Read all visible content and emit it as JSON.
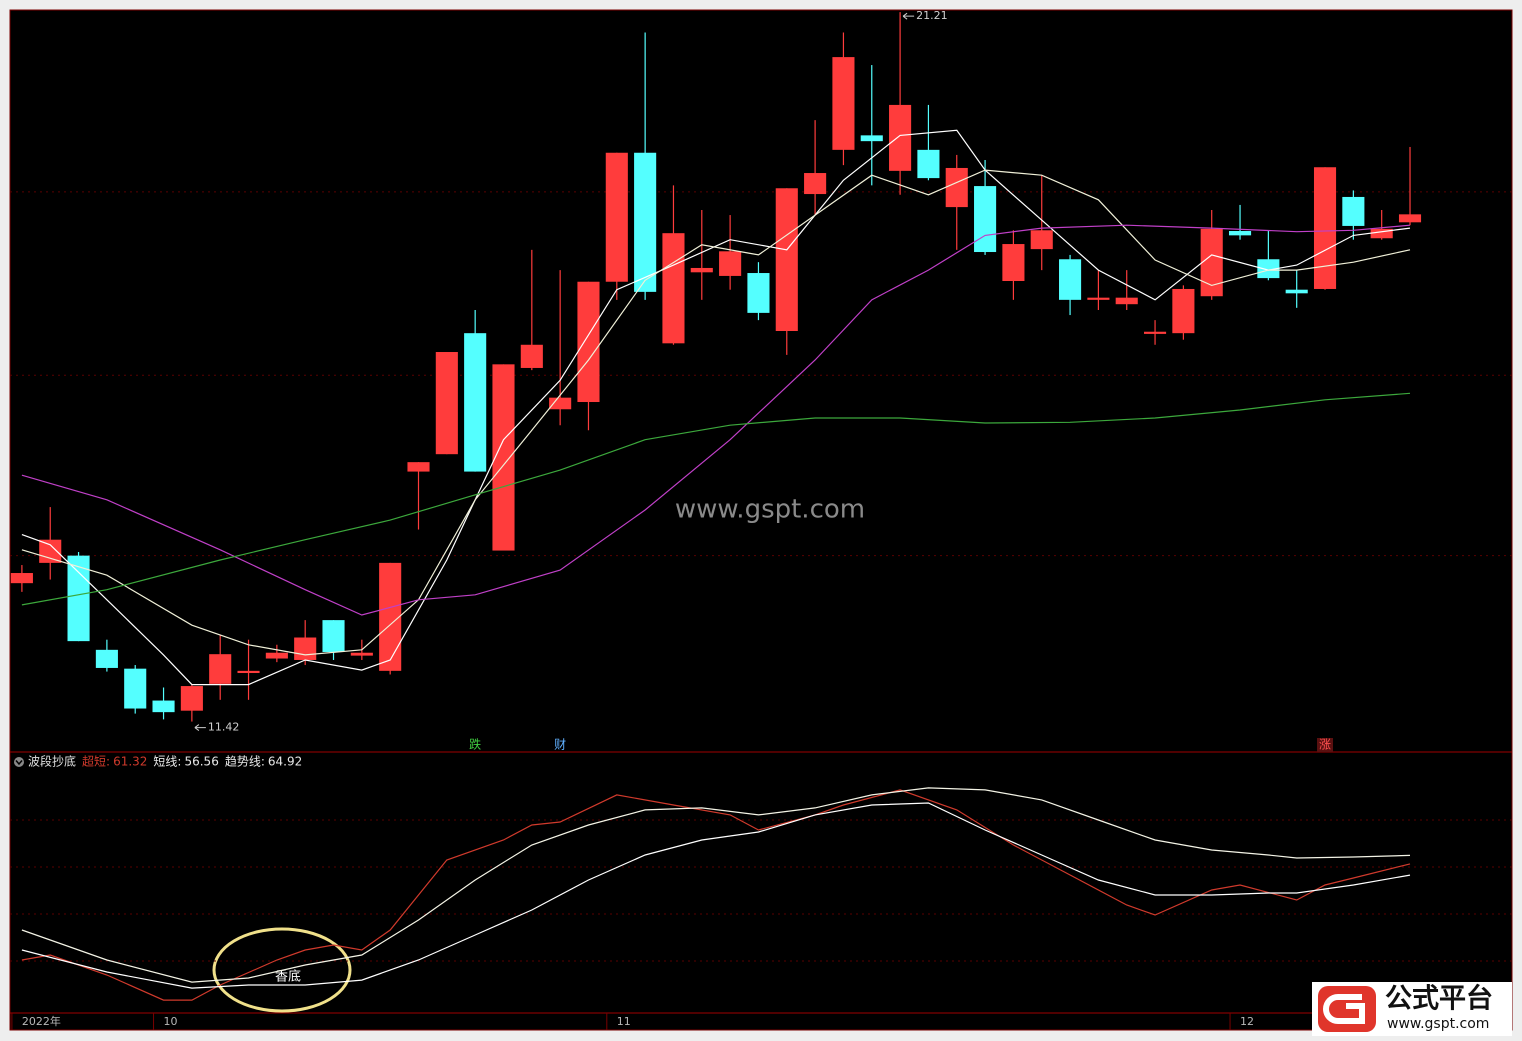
{
  "watermark": "www.gspt.com",
  "logo": {
    "title": "公式平台",
    "url": "www.gspt.com"
  },
  "chart_data": [
    {
      "type": "candlestick",
      "up_color": "#ff3c3c",
      "down_color": "#54ffff",
      "xlim": [
        -0.42,
        52.6
      ],
      "ylim": [
        11.0,
        21.24
      ],
      "gridlines": [
        18.73,
        16.2,
        13.71
      ],
      "ohlc": [
        [
          13.33,
          13.58,
          13.21,
          13.47
        ],
        [
          13.61,
          14.38,
          13.38,
          13.93
        ],
        [
          13.71,
          13.76,
          12.53,
          12.53
        ],
        [
          12.41,
          12.55,
          12.11,
          12.16
        ],
        [
          12.15,
          12.2,
          11.53,
          11.6
        ],
        [
          11.71,
          11.89,
          11.45,
          11.55
        ],
        [
          11.57,
          11.93,
          11.42,
          11.91
        ],
        [
          11.94,
          12.62,
          11.72,
          12.35
        ],
        [
          12.09,
          12.55,
          11.72,
          12.12
        ],
        [
          12.29,
          12.48,
          12.24,
          12.37
        ],
        [
          12.27,
          12.82,
          12.2,
          12.58
        ],
        [
          12.82,
          12.82,
          12.27,
          12.38
        ],
        [
          12.33,
          12.55,
          12.27,
          12.37
        ],
        [
          12.12,
          13.61,
          12.07,
          13.61
        ],
        [
          14.87,
          15.0,
          14.07,
          15.0
        ],
        [
          15.11,
          16.52,
          15.11,
          16.52
        ],
        [
          16.78,
          17.1,
          14.87,
          14.87
        ],
        [
          13.78,
          16.35,
          13.78,
          16.35
        ],
        [
          16.3,
          17.93,
          16.27,
          16.62
        ],
        [
          15.73,
          17.65,
          15.51,
          15.89
        ],
        [
          15.83,
          17.49,
          15.44,
          17.49
        ],
        [
          17.49,
          19.27,
          17.24,
          19.27
        ],
        [
          19.27,
          20.93,
          17.24,
          17.35
        ],
        [
          16.64,
          18.82,
          16.62,
          18.16
        ],
        [
          17.62,
          18.48,
          17.24,
          17.68
        ],
        [
          17.57,
          18.41,
          17.38,
          17.91
        ],
        [
          17.61,
          17.76,
          16.96,
          17.06
        ],
        [
          16.81,
          18.78,
          16.48,
          18.78
        ],
        [
          18.7,
          19.72,
          18.41,
          18.99
        ],
        [
          19.31,
          20.93,
          19.1,
          20.59
        ],
        [
          19.51,
          20.48,
          18.82,
          19.43
        ],
        [
          19.02,
          21.21,
          18.69,
          19.93
        ],
        [
          19.31,
          19.93,
          18.89,
          18.92
        ],
        [
          18.52,
          19.24,
          17.93,
          19.06
        ],
        [
          18.81,
          19.17,
          17.86,
          17.9
        ],
        [
          17.5,
          18.2,
          17.24,
          18.01
        ],
        [
          17.94,
          18.96,
          17.65,
          18.2
        ],
        [
          17.8,
          17.86,
          17.03,
          17.24
        ],
        [
          17.24,
          17.65,
          17.1,
          17.27
        ],
        [
          17.18,
          17.65,
          17.1,
          17.27
        ],
        [
          16.77,
          16.96,
          16.62,
          16.8
        ],
        [
          16.78,
          17.44,
          16.69,
          17.39
        ],
        [
          17.29,
          18.48,
          17.24,
          18.22
        ],
        [
          18.19,
          18.55,
          18.07,
          18.13
        ],
        [
          17.8,
          18.2,
          17.51,
          17.54
        ],
        [
          17.38,
          17.65,
          17.13,
          17.33
        ],
        [
          17.39,
          19.07,
          17.38,
          19.07
        ],
        [
          18.66,
          18.75,
          18.07,
          18.26
        ],
        [
          18.09,
          18.48,
          18.07,
          18.22
        ],
        [
          18.31,
          19.35,
          18.27,
          18.42
        ]
      ],
      "series": [
        {
          "color": "#ffffff",
          "x": [
            0,
            1,
            3,
            5,
            6,
            8,
            10,
            12,
            13,
            15,
            17,
            19,
            21,
            23,
            25,
            27,
            29,
            31,
            33,
            34,
            36,
            38,
            40,
            42,
            44,
            45,
            47,
            49
          ],
          "values": [
            14.0,
            13.86,
            13.1,
            12.34,
            11.93,
            11.93,
            12.27,
            12.13,
            12.27,
            13.65,
            15.31,
            16.13,
            17.38,
            17.72,
            18.07,
            17.93,
            18.89,
            19.51,
            19.58,
            19.03,
            18.34,
            17.65,
            17.24,
            17.86,
            17.65,
            17.72,
            18.13,
            18.23
          ]
        },
        {
          "color": "#f0f0d8",
          "x": [
            0,
            3,
            6,
            8,
            10,
            12,
            14,
            16,
            18,
            20,
            22,
            24,
            26,
            28,
            30,
            32,
            34,
            36,
            38,
            40,
            42,
            44,
            45,
            47,
            49
          ],
          "values": [
            13.79,
            13.44,
            12.75,
            12.48,
            12.34,
            12.41,
            13.1,
            14.48,
            15.44,
            16.41,
            17.51,
            18.0,
            17.86,
            18.41,
            18.96,
            18.69,
            19.03,
            18.96,
            18.62,
            17.79,
            17.44,
            17.65,
            17.65,
            17.76,
            17.93
          ]
        },
        {
          "color": "#c040c8",
          "x": [
            0,
            3,
            7,
            10,
            12,
            14,
            16,
            19,
            22,
            25,
            28,
            30,
            32,
            34,
            36,
            39,
            42,
            45,
            47,
            49
          ],
          "values": [
            14.82,
            14.48,
            13.79,
            13.24,
            12.89,
            13.1,
            13.17,
            13.51,
            14.34,
            15.31,
            16.41,
            17.24,
            17.65,
            18.13,
            18.23,
            18.27,
            18.23,
            18.18,
            18.2,
            18.27
          ]
        },
        {
          "color": "#3ca83c",
          "x": [
            0,
            3,
            7,
            10,
            13,
            16,
            19,
            22,
            25,
            28,
            31,
            34,
            37,
            40,
            43,
            46,
            49
          ],
          "values": [
            13.03,
            13.24,
            13.65,
            13.93,
            14.2,
            14.55,
            14.89,
            15.31,
            15.51,
            15.61,
            15.61,
            15.54,
            15.55,
            15.61,
            15.72,
            15.86,
            15.95
          ]
        }
      ],
      "markers": [
        {
          "text": "跌",
          "x": 16,
          "color": "#40d040"
        },
        {
          "text": "财",
          "x": 19,
          "color": "#60b0ff"
        },
        {
          "text": "涨",
          "x": 46,
          "color": "#ff5050"
        }
      ]
    },
    {
      "type": "line",
      "title": "波段抄底",
      "xlim": [
        -0.42,
        52.6
      ],
      "ylim": [
        -2.1,
        108.9
      ],
      "gridlines": [
        20,
        40,
        60,
        80
      ],
      "xticks": [
        {
          "value": 0,
          "label": "2022年"
        },
        {
          "value": 5,
          "label": "10"
        },
        {
          "value": 21,
          "label": "11"
        },
        {
          "value": 43,
          "label": "12"
        }
      ],
      "annotation": "香底",
      "series": [
        {
          "name": "超短:",
          "color": "#d03a2c",
          "x": [
            0,
            1,
            3,
            5,
            6,
            7,
            9,
            10,
            11,
            12,
            13,
            15,
            17,
            18,
            19,
            21,
            23,
            25,
            26,
            28,
            29,
            31,
            33,
            35,
            37,
            39,
            40,
            42,
            43,
            45,
            46,
            47,
            49
          ],
          "values": [
            20.43,
            22.55,
            14.04,
            3.4,
            3.4,
            9.79,
            20.43,
            24.68,
            26.81,
            24.68,
            33.19,
            62.98,
            71.49,
            77.87,
            79.15,
            90.64,
            86.38,
            82.13,
            75.74,
            82.13,
            86.38,
            92.77,
            84.26,
            69.36,
            56.6,
            43.83,
            39.57,
            50.21,
            52.34,
            45.96,
            52.34,
            55.32,
            61.32
          ]
        },
        {
          "name": "短线:",
          "color": "#ffffff",
          "x": [
            0,
            3,
            6,
            8,
            10,
            12,
            14,
            16,
            18,
            20,
            22,
            24,
            26,
            28,
            30,
            32,
            34,
            36,
            38,
            40,
            42,
            44,
            45,
            47,
            49
          ],
          "values": [
            24.68,
            15.32,
            8.51,
            9.79,
            9.79,
            11.91,
            20.43,
            31.06,
            41.7,
            54.47,
            65.11,
            71.49,
            74.89,
            82.13,
            86.38,
            87.23,
            75.74,
            65.11,
            54.47,
            48.09,
            48.09,
            48.94,
            48.94,
            52.34,
            56.56
          ]
        },
        {
          "name": "趋势线:",
          "color": "#f4f4e6",
          "x": [
            0,
            3,
            6,
            8,
            10,
            12,
            14,
            16,
            18,
            20,
            22,
            24,
            26,
            28,
            30,
            32,
            34,
            36,
            38,
            40,
            42,
            44,
            45,
            47,
            49
          ],
          "values": [
            33.19,
            20.43,
            11.06,
            12.77,
            18.3,
            22.55,
            37.45,
            54.47,
            69.36,
            77.87,
            84.26,
            85.11,
            82.13,
            85.11,
            90.64,
            93.62,
            92.77,
            88.51,
            80.0,
            71.49,
            67.23,
            65.11,
            63.83,
            64.26,
            64.92
          ]
        }
      ]
    }
  ]
}
